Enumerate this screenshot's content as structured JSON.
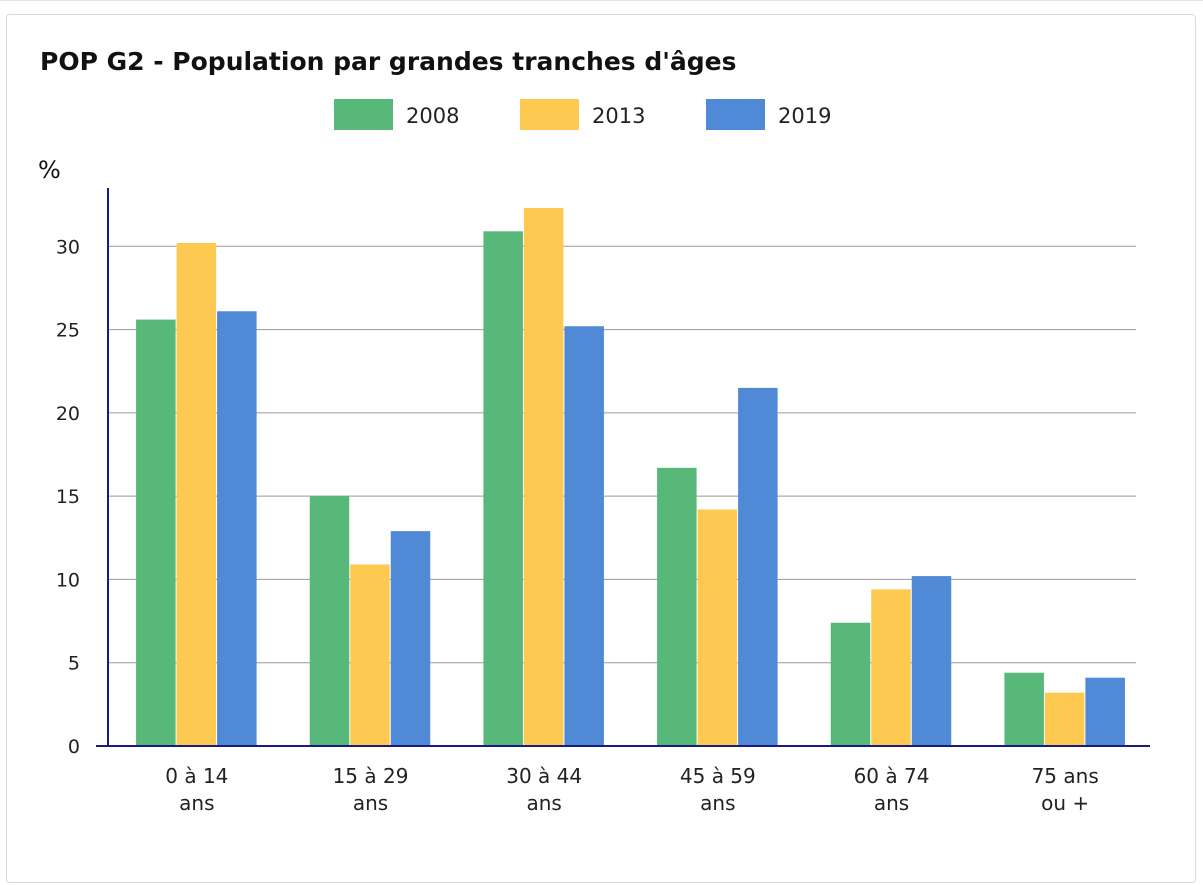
{
  "colors": {
    "grid": "#9a9a9a",
    "axis": "#1a1a80"
  },
  "chart_data": {
    "type": "bar",
    "title": "POP G2 - Population par grandes tranches d'âges",
    "ylabel": "%",
    "xlabel": "",
    "ylim": [
      0,
      33.5
    ],
    "yticks": [
      0,
      5,
      10,
      15,
      20,
      25,
      30
    ],
    "grid": true,
    "legend_position": "top-center",
    "categories": [
      [
        "0 à 14",
        "ans"
      ],
      [
        "15 à 29",
        "ans"
      ],
      [
        "30 à 44",
        "ans"
      ],
      [
        "45 à 59",
        "ans"
      ],
      [
        "60 à 74",
        "ans"
      ],
      [
        "75 ans",
        "ou +"
      ]
    ],
    "series": [
      {
        "name": "2008",
        "color": "#57b87a",
        "values": [
          25.6,
          15.0,
          30.9,
          16.7,
          7.4,
          4.4
        ]
      },
      {
        "name": "2013",
        "color": "#fdc951",
        "values": [
          30.2,
          10.9,
          32.3,
          14.2,
          9.4,
          3.2
        ]
      },
      {
        "name": "2019",
        "color": "#5089d6",
        "values": [
          26.1,
          12.9,
          25.2,
          21.5,
          10.2,
          4.1
        ]
      }
    ]
  }
}
